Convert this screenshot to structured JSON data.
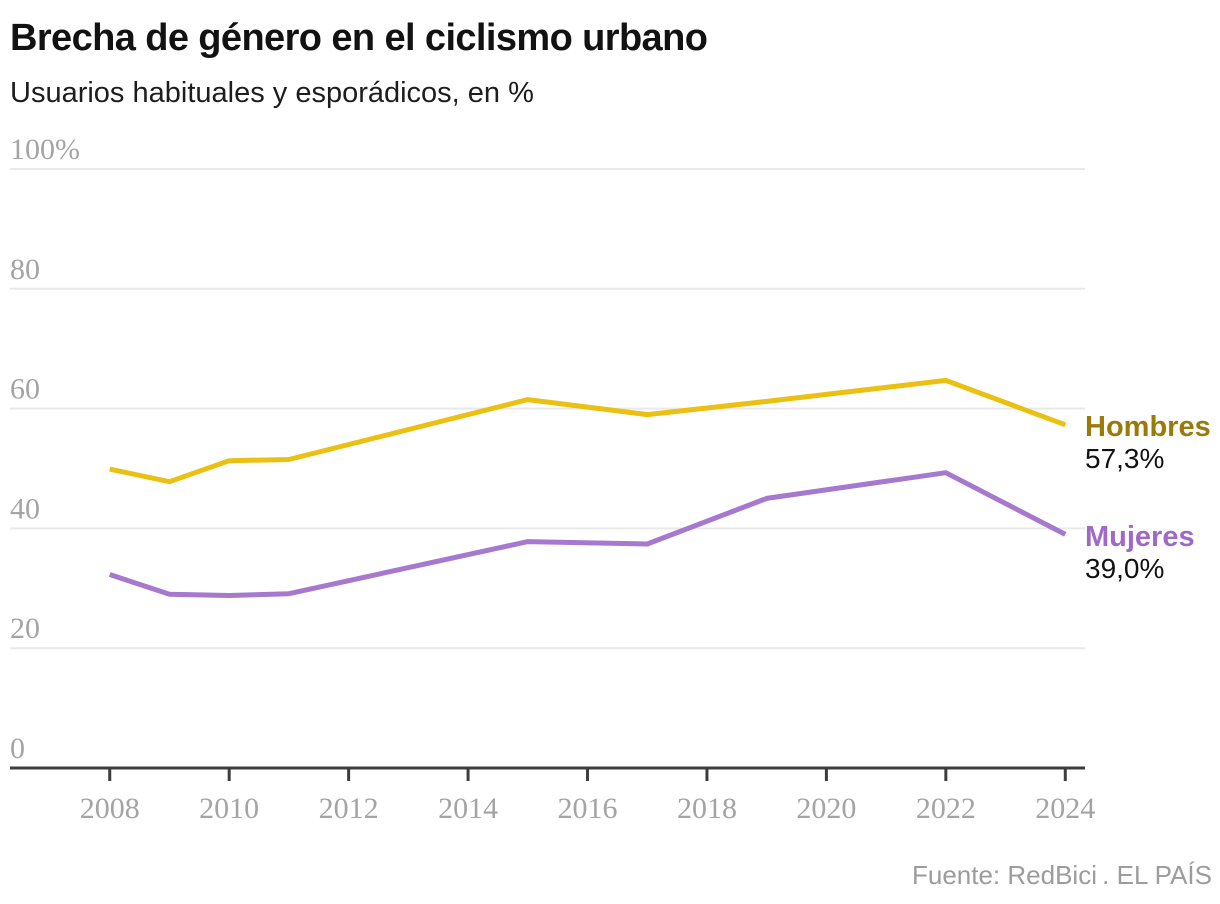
{
  "header": {
    "title": "Brecha de género en el ciclismo urbano",
    "subtitle": "Usuarios habituales y esporádicos, en %"
  },
  "footer": {
    "source": "Fuente: RedBici . EL PAÍS"
  },
  "chart_data": {
    "type": "line",
    "title": "Brecha de género en el ciclismo urbano",
    "subtitle": "Usuarios habituales y esporádicos, en %",
    "x_label": "",
    "y_label": "",
    "x": [
      2008,
      2009,
      2010,
      2011,
      2015,
      2017,
      2019,
      2022,
      2024
    ],
    "series": [
      {
        "name": "Hombres",
        "values": [
          49.9,
          47.8,
          51.3,
          51.5,
          61.5,
          59.0,
          61.2,
          64.7,
          57.3
        ],
        "end_label": "57,3%",
        "line_color": "#eac113",
        "label_color": "#9a7b0a"
      },
      {
        "name": "Mujeres",
        "values": [
          32.3,
          29.0,
          28.8,
          29.1,
          37.8,
          37.4,
          45.0,
          49.3,
          39.0
        ],
        "end_label": "39,0%",
        "line_color": "#a678ce",
        "label_color": "#a169c6"
      }
    ],
    "xlim": [
      2006.33,
      2024.33
    ],
    "ylim": [
      0,
      100
    ],
    "xticks": [
      2008,
      2010,
      2012,
      2014,
      2016,
      2018,
      2020,
      2022,
      2024
    ],
    "yticks": [
      0,
      20,
      40,
      60,
      80,
      100
    ],
    "ytick_labels": [
      "0",
      "20",
      "40",
      "60",
      "80",
      "100%"
    ],
    "grid": "horizontal",
    "legend_position": "right-of-line-end",
    "colors": {
      "gridline": "#e9e9e9",
      "axis": "#3d3d3d",
      "tick_label": "#a4a4a4"
    }
  }
}
